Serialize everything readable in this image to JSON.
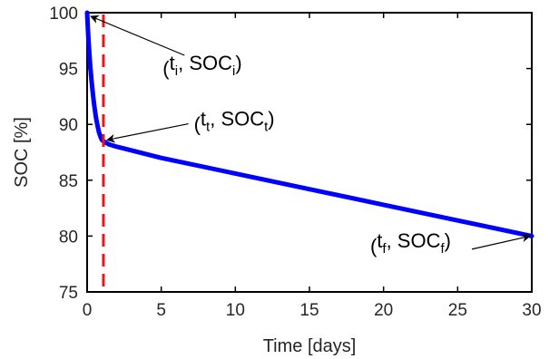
{
  "chart_data": {
    "type": "line",
    "title": "",
    "xlabel": "Time [days]",
    "ylabel": "SOC [%]",
    "xlim": [
      0,
      30
    ],
    "ylim": [
      75,
      100
    ],
    "xticks": [
      0,
      5,
      10,
      15,
      20,
      25,
      30
    ],
    "yticks": [
      75,
      80,
      85,
      90,
      95,
      100
    ],
    "grid": false,
    "colors": {
      "series": "#0000ff",
      "vline": "#e31a1c",
      "axis": "#000000"
    },
    "series": [
      {
        "x": [
          0,
          0.05,
          0.1,
          0.2,
          0.3,
          0.4,
          0.5,
          0.6,
          0.7,
          0.8,
          0.9,
          1.0,
          1.2,
          1.5,
          2,
          5,
          10,
          15,
          20,
          25,
          30
        ],
        "y": [
          100,
          98.6,
          97.4,
          95.4,
          93.9,
          92.6,
          91.5,
          90.6,
          89.9,
          89.3,
          88.9,
          88.6,
          88.4,
          88.2,
          88.0,
          87.0,
          85.6,
          84.2,
          82.8,
          81.4,
          80.0
        ]
      }
    ],
    "vline": {
      "x": 1.1,
      "style": "dashed"
    },
    "annotations": [
      {
        "main": "t",
        "sub": "i",
        "main2": ", SOC",
        "sub2": "i",
        "x": 0,
        "y": 100,
        "tx": 5.1,
        "ty": 94.4
      },
      {
        "main": "t",
        "sub": "t",
        "main2": ", SOC",
        "sub2": "t",
        "x": 1.1,
        "y": 88.6,
        "tx": 7.2,
        "ty": 89.4
      },
      {
        "main": "t",
        "sub": "f",
        "main2": ", SOC",
        "sub2": "f",
        "x": 30,
        "y": 80,
        "tx": 19.1,
        "ty": 78.5
      }
    ]
  }
}
